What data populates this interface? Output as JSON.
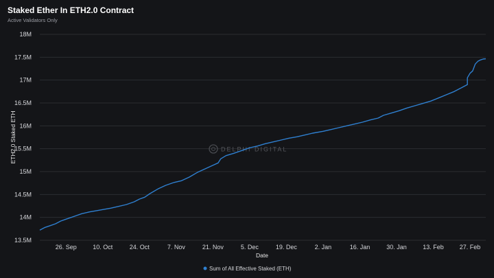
{
  "chart_data": {
    "type": "line",
    "title": "Staked Ether In ETH2.0 Contract",
    "subtitle": "Active Validators Only",
    "xlabel": "Date",
    "ylabel": "ETH2.0 Staked ETH",
    "ylim": [
      13500000,
      18000000
    ],
    "yticks": [
      {
        "value": 13500000,
        "label": "13.5M"
      },
      {
        "value": 14000000,
        "label": "14M"
      },
      {
        "value": 14500000,
        "label": "14.5M"
      },
      {
        "value": 15000000,
        "label": "15M"
      },
      {
        "value": 15500000,
        "label": "15.5M"
      },
      {
        "value": 16000000,
        "label": "16M"
      },
      {
        "value": 16500000,
        "label": "16.5M"
      },
      {
        "value": 17000000,
        "label": "17M"
      },
      {
        "value": 17500000,
        "label": "17.5M"
      },
      {
        "value": 18000000,
        "label": "18M"
      }
    ],
    "xlim": [
      "2023-09-16",
      "2024-03-04"
    ],
    "xticks": [
      {
        "date": "2023-09-26",
        "label": "26. Sep"
      },
      {
        "date": "2023-10-10",
        "label": "10. Oct"
      },
      {
        "date": "2023-10-24",
        "label": "24. Oct"
      },
      {
        "date": "2023-11-07",
        "label": "7. Nov"
      },
      {
        "date": "2023-11-21",
        "label": "21. Nov"
      },
      {
        "date": "2023-12-05",
        "label": "5. Dec"
      },
      {
        "date": "2023-12-19",
        "label": "19. Dec"
      },
      {
        "date": "2024-01-02",
        "label": "2. Jan"
      },
      {
        "date": "2024-01-16",
        "label": "16. Jan"
      },
      {
        "date": "2024-01-30",
        "label": "30. Jan"
      },
      {
        "date": "2024-02-13",
        "label": "13. Feb"
      },
      {
        "date": "2024-02-27",
        "label": "27. Feb"
      }
    ],
    "grid": true,
    "legend_position": "bottom-center",
    "series": [
      {
        "name": "Sum of All Effective Staked (ETH)",
        "color": "#2f80d1",
        "points": [
          [
            "2023-09-16",
            13720000
          ],
          [
            "2023-09-18",
            13780000
          ],
          [
            "2023-09-20",
            13820000
          ],
          [
            "2023-09-22",
            13860000
          ],
          [
            "2023-09-24",
            13920000
          ],
          [
            "2023-09-26",
            13960000
          ],
          [
            "2023-09-28",
            14000000
          ],
          [
            "2023-09-30",
            14040000
          ],
          [
            "2023-10-02",
            14080000
          ],
          [
            "2023-10-05",
            14120000
          ],
          [
            "2023-10-08",
            14150000
          ],
          [
            "2023-10-10",
            14170000
          ],
          [
            "2023-10-13",
            14200000
          ],
          [
            "2023-10-16",
            14240000
          ],
          [
            "2023-10-19",
            14280000
          ],
          [
            "2023-10-22",
            14340000
          ],
          [
            "2023-10-24",
            14400000
          ],
          [
            "2023-10-26",
            14440000
          ],
          [
            "2023-10-28",
            14520000
          ],
          [
            "2023-10-31",
            14620000
          ],
          [
            "2023-11-03",
            14700000
          ],
          [
            "2023-11-06",
            14760000
          ],
          [
            "2023-11-09",
            14800000
          ],
          [
            "2023-11-12",
            14880000
          ],
          [
            "2023-11-15",
            14980000
          ],
          [
            "2023-11-18",
            15060000
          ],
          [
            "2023-11-21",
            15140000
          ],
          [
            "2023-11-23",
            15190000
          ],
          [
            "2023-11-24",
            15280000
          ],
          [
            "2023-11-26",
            15350000
          ],
          [
            "2023-11-29",
            15400000
          ],
          [
            "2023-12-02",
            15460000
          ],
          [
            "2023-12-05",
            15520000
          ],
          [
            "2023-12-08",
            15560000
          ],
          [
            "2023-12-11",
            15610000
          ],
          [
            "2023-12-14",
            15650000
          ],
          [
            "2023-12-17",
            15690000
          ],
          [
            "2023-12-20",
            15730000
          ],
          [
            "2023-12-23",
            15760000
          ],
          [
            "2023-12-26",
            15800000
          ],
          [
            "2023-12-29",
            15840000
          ],
          [
            "2024-01-02",
            15880000
          ],
          [
            "2024-01-05",
            15920000
          ],
          [
            "2024-01-08",
            15960000
          ],
          [
            "2024-01-11",
            16000000
          ],
          [
            "2024-01-14",
            16040000
          ],
          [
            "2024-01-17",
            16080000
          ],
          [
            "2024-01-20",
            16130000
          ],
          [
            "2024-01-23",
            16170000
          ],
          [
            "2024-01-25",
            16230000
          ],
          [
            "2024-01-28",
            16280000
          ],
          [
            "2024-01-31",
            16330000
          ],
          [
            "2024-02-03",
            16390000
          ],
          [
            "2024-02-06",
            16440000
          ],
          [
            "2024-02-09",
            16490000
          ],
          [
            "2024-02-12",
            16540000
          ],
          [
            "2024-02-15",
            16610000
          ],
          [
            "2024-02-18",
            16680000
          ],
          [
            "2024-02-21",
            16750000
          ],
          [
            "2024-02-23",
            16810000
          ],
          [
            "2024-02-25",
            16870000
          ],
          [
            "2024-02-26",
            16900000
          ],
          [
            "2024-02-26",
            17050000
          ],
          [
            "2024-02-27",
            17150000
          ],
          [
            "2024-02-28",
            17200000
          ],
          [
            "2024-02-29",
            17350000
          ],
          [
            "2024-03-01",
            17410000
          ],
          [
            "2024-03-02",
            17440000
          ],
          [
            "2024-03-03",
            17460000
          ],
          [
            "2024-03-04",
            17465000
          ]
        ]
      }
    ],
    "watermark": "DELPHI DIGITAL"
  }
}
